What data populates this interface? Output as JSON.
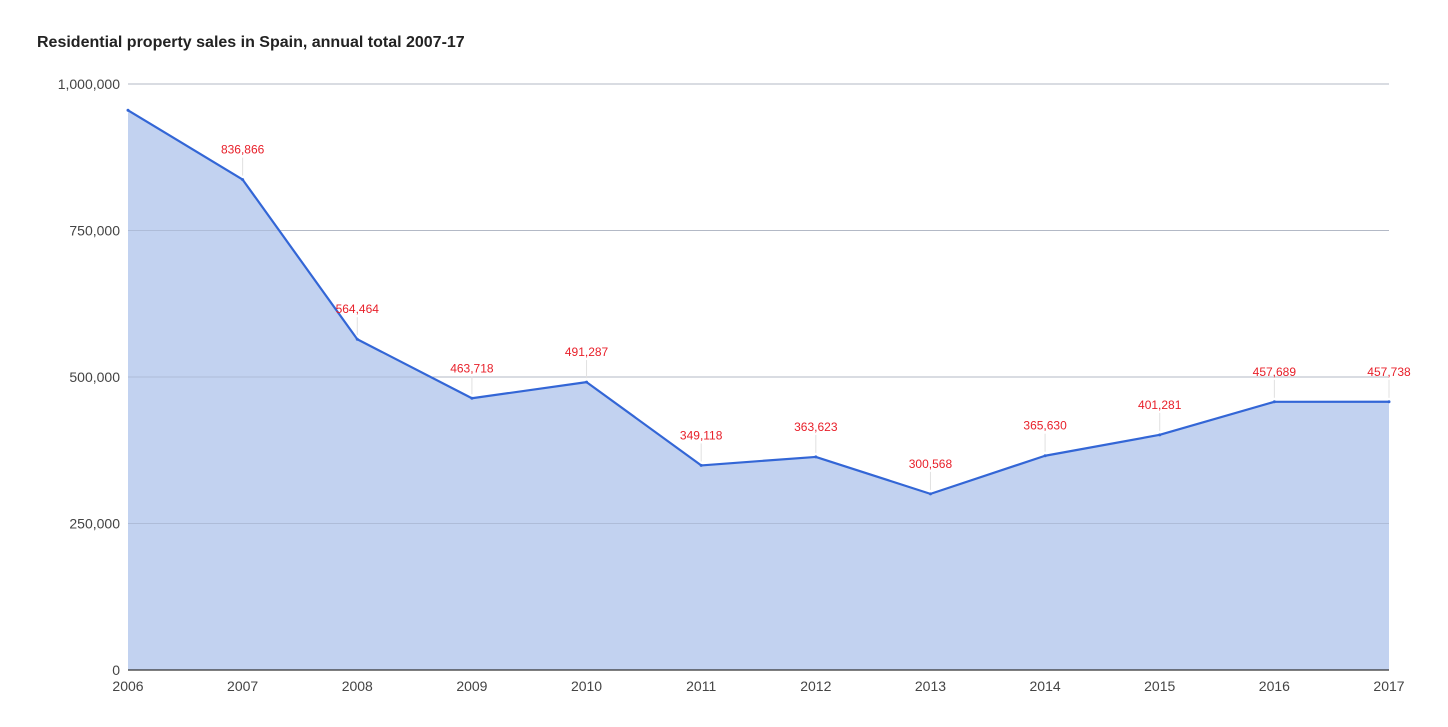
{
  "chart_data": {
    "type": "area",
    "title": "Residential property sales in Spain, annual total 2007-17",
    "xlabel": "",
    "ylabel": "",
    "x": [
      "2006",
      "2007",
      "2008",
      "2009",
      "2010",
      "2011",
      "2012",
      "2013",
      "2014",
      "2015",
      "2016",
      "2017"
    ],
    "series": [
      {
        "values": [
          955186,
          836866,
          564464,
          463718,
          491287,
          349118,
          363623,
          300568,
          365630,
          401281,
          457689,
          457738
        ],
        "data_labels": [
          "",
          "836,866",
          "564,464",
          "463,718",
          "491,287",
          "349,118",
          "363,623",
          "300,568",
          "365,630",
          "401,281",
          "457,689",
          "457,738"
        ]
      }
    ],
    "ylim": [
      0,
      1000000
    ],
    "yticks": [
      0,
      250000,
      500000,
      750000,
      1000000
    ],
    "ytick_labels": [
      "0",
      "250,000",
      "500,000",
      "750,000",
      "1,000,000"
    ],
    "grid": true,
    "legend": "none",
    "colors": {
      "line": "#3366d6",
      "fill": "#c2d2f0",
      "grid": "#cccccc",
      "axis": "#333333",
      "data_label": "#e8202a"
    }
  }
}
